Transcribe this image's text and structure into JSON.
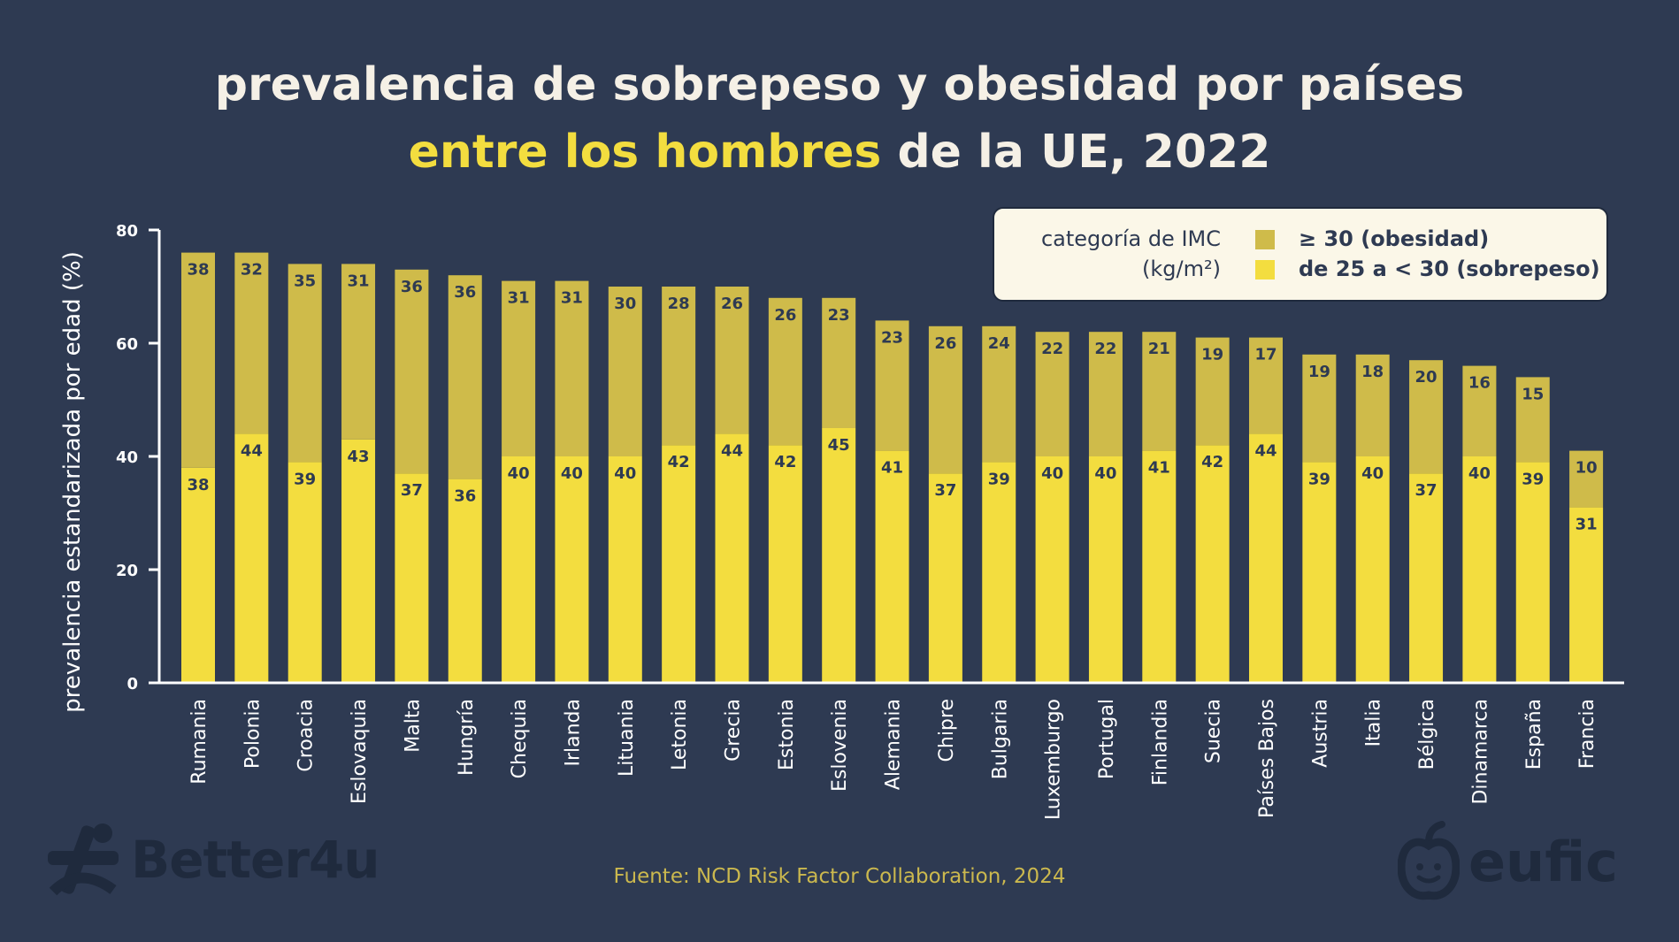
{
  "title": {
    "line1": "prevalencia de sobrepeso y obesidad por países",
    "line2_highlight": "entre los hombres",
    "line2_rest": " de la UE, 2022"
  },
  "legend": {
    "category_label_1": "categoría de IMC",
    "category_label_2": "(kg/m²)",
    "items": [
      {
        "label": "≥ 30 (obesidad)",
        "color": "#cfbb4a"
      },
      {
        "label": "de 25 a < 30 (sobrepeso)",
        "color": "#f3dd3f"
      }
    ]
  },
  "source": "Fuente: NCD Risk Factor Collaboration, 2024",
  "logos": {
    "left": "Better4u",
    "right": "eufic"
  },
  "colors": {
    "background": "#2e3a52",
    "overweight": "#f3dd3f",
    "obesity": "#cfbb4a",
    "title": "#f5f0e6",
    "title_highlight": "#f3dd3f",
    "axis": "#ffffff",
    "bar_label": "#2e3a52",
    "source": "#cbb84e"
  },
  "chart_data": {
    "type": "bar",
    "stacked": true,
    "title": "prevalencia de sobrepeso y obesidad por países entre los hombres de la UE, 2022",
    "xlabel": "",
    "ylabel": "prevalencia estandarizada por edad (%)",
    "ylim": [
      0,
      80
    ],
    "yticks": [
      0,
      20,
      40,
      60,
      80
    ],
    "legend_position": "top-right",
    "categories": [
      "Rumania",
      "Polonia",
      "Croacia",
      "Eslovaquia",
      "Malta",
      "Hungría",
      "Chequia",
      "Irlanda",
      "Lituania",
      "Letonia",
      "Grecia",
      "Estonia",
      "Eslovenia",
      "Alemania",
      "Chipre",
      "Bulgaria",
      "Luxemburgo",
      "Portugal",
      "Finlandia",
      "Suecia",
      "Países Bajos",
      "Austria",
      "Italia",
      "Bélgica",
      "Dinamarca",
      "España",
      "Francia"
    ],
    "series": [
      {
        "name": "de 25 a < 30 (sobrepeso)",
        "values": [
          38,
          44,
          39,
          43,
          37,
          36,
          40,
          40,
          40,
          42,
          44,
          42,
          45,
          41,
          37,
          39,
          40,
          40,
          41,
          42,
          44,
          39,
          40,
          37,
          40,
          39,
          31
        ]
      },
      {
        "name": "≥ 30 (obesidad)",
        "values": [
          38,
          32,
          35,
          31,
          36,
          36,
          31,
          31,
          30,
          28,
          26,
          26,
          23,
          23,
          26,
          24,
          22,
          22,
          21,
          19,
          17,
          19,
          18,
          20,
          16,
          15,
          10
        ]
      }
    ]
  }
}
